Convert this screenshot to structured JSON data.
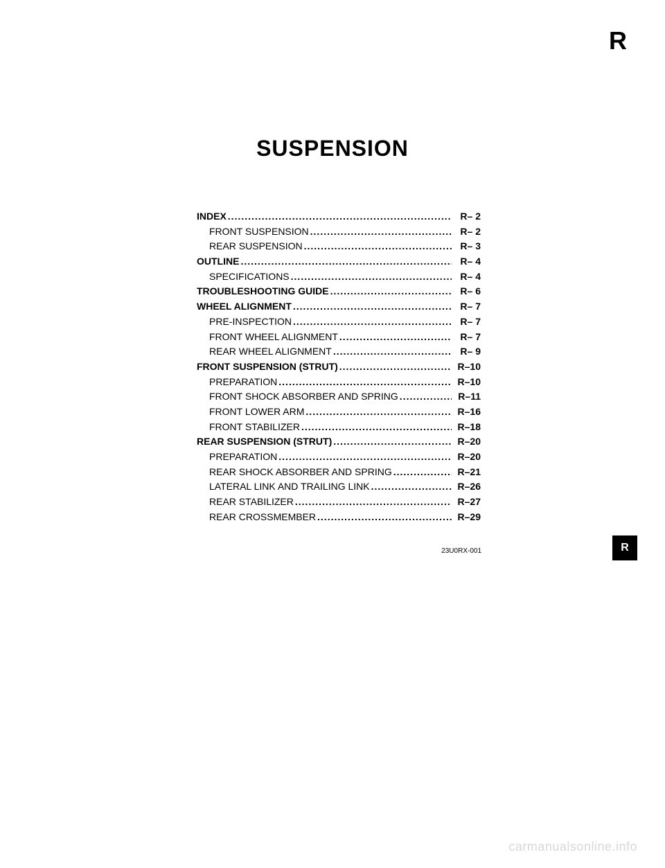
{
  "section_letter": "R",
  "title": "SUSPENSION",
  "toc": [
    {
      "label": "INDEX",
      "page": "R–  2",
      "bold": true,
      "indent": false
    },
    {
      "label": "FRONT SUSPENSION",
      "page": "R–  2",
      "bold": false,
      "indent": true
    },
    {
      "label": "REAR SUSPENSION",
      "page": "R–  3",
      "bold": false,
      "indent": true
    },
    {
      "label": "OUTLINE",
      "page": "R–  4",
      "bold": true,
      "indent": false
    },
    {
      "label": "SPECIFICATIONS",
      "page": "R–  4",
      "bold": false,
      "indent": true
    },
    {
      "label": "TROUBLESHOOTING GUIDE",
      "page": "R–  6",
      "bold": true,
      "indent": false
    },
    {
      "label": "WHEEL ALIGNMENT",
      "page": "R–  7",
      "bold": true,
      "indent": false
    },
    {
      "label": "PRE-INSPECTION",
      "page": "R–  7",
      "bold": false,
      "indent": true
    },
    {
      "label": "FRONT WHEEL ALIGNMENT",
      "page": "R–  7",
      "bold": false,
      "indent": true
    },
    {
      "label": "REAR WHEEL ALIGNMENT",
      "page": "R–  9",
      "bold": false,
      "indent": true
    },
    {
      "label": "FRONT SUSPENSION (STRUT)",
      "page": "R–10",
      "bold": true,
      "indent": false
    },
    {
      "label": "PREPARATION",
      "page": "R–10",
      "bold": false,
      "indent": true
    },
    {
      "label": "FRONT SHOCK ABSORBER AND SPRING",
      "page": "R–11",
      "bold": false,
      "indent": true
    },
    {
      "label": "FRONT LOWER ARM",
      "page": "R–16",
      "bold": false,
      "indent": true
    },
    {
      "label": "FRONT STABILIZER",
      "page": "R–18",
      "bold": false,
      "indent": true
    },
    {
      "label": "REAR SUSPENSION (STRUT)",
      "page": "R–20",
      "bold": true,
      "indent": false
    },
    {
      "label": "PREPARATION",
      "page": "R–20",
      "bold": false,
      "indent": true
    },
    {
      "label": "REAR SHOCK ABSORBER AND SPRING",
      "page": "R–21",
      "bold": false,
      "indent": true
    },
    {
      "label": "LATERAL LINK AND TRAILING LINK",
      "page": "R–26",
      "bold": false,
      "indent": true
    },
    {
      "label": "REAR STABILIZER",
      "page": "R–27",
      "bold": false,
      "indent": true
    },
    {
      "label": "REAR CROSSMEMBER",
      "page": "R–29",
      "bold": false,
      "indent": true
    }
  ],
  "doc_code": "23U0RX-001",
  "side_tab": "R",
  "watermark": "carmanualsonline.info"
}
